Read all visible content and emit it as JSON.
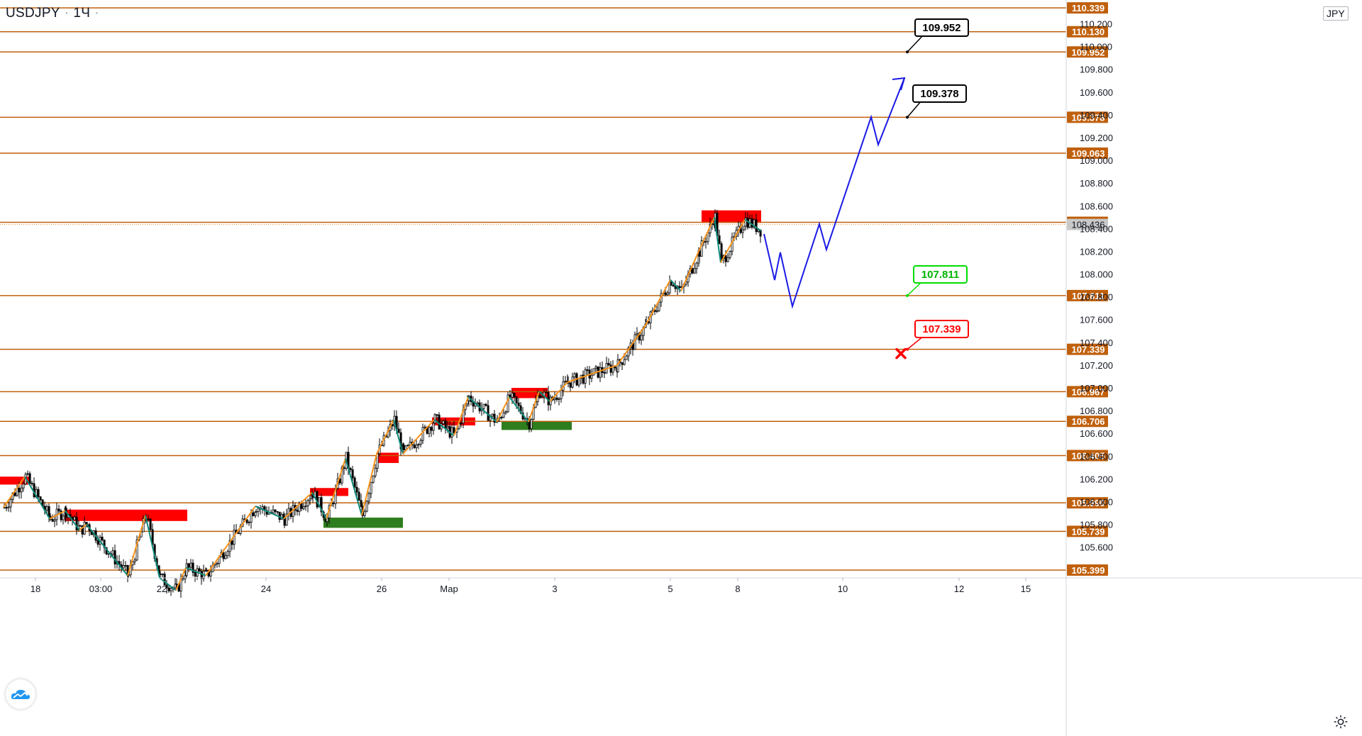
{
  "header": {
    "symbol": "USDJPY",
    "interval": "1Ч",
    "currency": "JPY"
  },
  "icons": {
    "logo": "tradingview-cloud-icon",
    "settings": "gear-icon"
  },
  "colors": {
    "level_line": "#c0600c",
    "level_label_bg": "#c0600c",
    "bull_candle": "#ffffff",
    "bear_candle": "#000000",
    "zigzag_orange": "#f7931a",
    "zigzag_green": "#0e8a7a",
    "resistance_zone": "#ff0000",
    "support_zone": "#2e7d1e",
    "forecast": "#1a1ae6",
    "target_box": "#000000",
    "entry_box": "#00dd00",
    "stop_box": "#ff0000",
    "current_price_bg": "#c8c8c8"
  },
  "chart_data": {
    "type": "candlestick",
    "symbol": "USDJPY",
    "timeframe": "1Ч",
    "y_range": [
      105.38,
      110.39
    ],
    "y_ticks": [
      "105.600",
      "105.800",
      "106.000",
      "106.200",
      "106.400",
      "106.600",
      "106.800",
      "107.000",
      "107.200",
      "107.400",
      "107.600",
      "107.800",
      "108.000",
      "108.200",
      "108.400",
      "108.600",
      "108.800",
      "109.000",
      "109.200",
      "109.400",
      "109.600",
      "109.800",
      "110.000",
      "110.200"
    ],
    "x_ticks": [
      "18",
      "03:00",
      "22",
      "24",
      "26",
      "Мар",
      "3",
      "5",
      "8",
      "10",
      "12",
      "15"
    ],
    "horizontal_levels": [
      "110.339",
      "110.130",
      "109.952",
      "109.378",
      "109.063",
      "108.455",
      "107.811",
      "107.339",
      "106.967",
      "106.706",
      "106.405",
      "105.990",
      "105.739",
      "105.399"
    ],
    "current_price": "108.436",
    "annotations": [
      {
        "text": "109.952",
        "kind": "target",
        "price": 109.952
      },
      {
        "text": "109.378",
        "kind": "target",
        "price": 109.378
      },
      {
        "text": "107.811",
        "kind": "entry",
        "price": 107.811
      },
      {
        "text": "107.339",
        "kind": "stop",
        "price": 107.339
      }
    ],
    "zones": [
      {
        "kind": "resistance",
        "top": 106.22,
        "bottom": 106.15
      },
      {
        "kind": "resistance",
        "top": 105.93,
        "bottom": 105.83
      },
      {
        "kind": "resistance",
        "top": 106.12,
        "bottom": 106.05
      },
      {
        "kind": "support",
        "top": 105.86,
        "bottom": 105.77
      },
      {
        "kind": "resistance",
        "top": 106.43,
        "bottom": 106.34
      },
      {
        "kind": "resistance",
        "top": 106.74,
        "bottom": 106.67
      },
      {
        "kind": "resistance",
        "top": 107.0,
        "bottom": 106.91
      },
      {
        "kind": "support",
        "top": 106.71,
        "bottom": 106.63
      },
      {
        "kind": "resistance",
        "top": 108.56,
        "bottom": 108.45
      }
    ],
    "price_path": [
      105.95,
      106.22,
      105.85,
      105.92,
      105.75,
      105.8,
      105.35,
      105.88,
      105.33,
      105.22,
      105.42,
      105.35,
      105.96,
      105.85,
      106.08,
      105.85,
      106.38,
      105.88,
      106.42,
      106.72,
      106.42,
      106.72,
      106.58,
      106.92,
      106.7,
      106.92,
      106.7,
      106.97,
      106.88,
      107.05,
      107.2,
      107.55,
      107.95,
      107.85,
      108.2,
      108.5,
      108.1,
      108.48,
      108.38
    ]
  }
}
